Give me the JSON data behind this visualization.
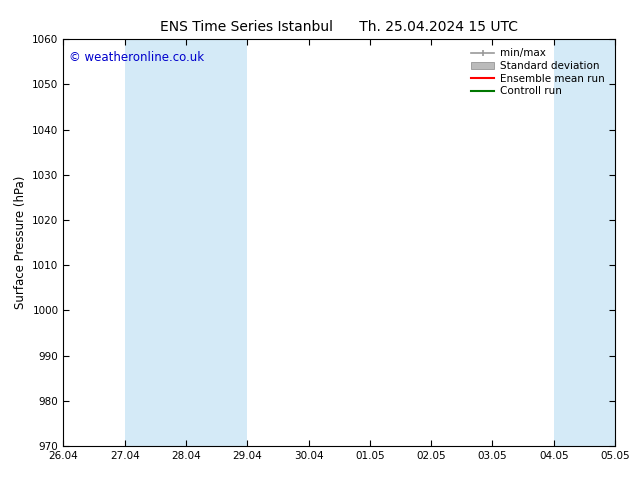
{
  "title": "ENS Time Series Istanbul      Th. 25.04.2024 15 UTC",
  "ylabel": "Surface Pressure (hPa)",
  "ylim": [
    970,
    1060
  ],
  "yticks": [
    970,
    980,
    990,
    1000,
    1010,
    1020,
    1030,
    1040,
    1050,
    1060
  ],
  "xlabel": "",
  "xtick_labels": [
    "26.04",
    "27.04",
    "28.04",
    "29.04",
    "30.04",
    "01.05",
    "02.05",
    "03.05",
    "04.05",
    "05.05"
  ],
  "xtick_positions": [
    0,
    1,
    2,
    3,
    4,
    5,
    6,
    7,
    8,
    9
  ],
  "xlim": [
    0,
    9
  ],
  "background_color": "#ffffff",
  "plot_bg_color": "#ffffff",
  "watermark": "© weatheronline.co.uk",
  "watermark_color": "#0000cc",
  "shaded_regions": [
    {
      "x_start": 1,
      "x_end": 3,
      "color": "#d4eaf7"
    },
    {
      "x_start": 8,
      "x_end": 9,
      "color": "#d4eaf7"
    }
  ],
  "legend_items": [
    {
      "label": "min/max",
      "color": "#999999",
      "style": "minmax"
    },
    {
      "label": "Standard deviation",
      "color": "#bbbbbb",
      "style": "stddev"
    },
    {
      "label": "Ensemble mean run",
      "color": "#ff0000",
      "style": "line"
    },
    {
      "label": "Controll run",
      "color": "#007700",
      "style": "line"
    }
  ],
  "tick_color": "#000000",
  "spine_color": "#000000",
  "fig_width": 6.34,
  "fig_height": 4.9,
  "dpi": 100
}
